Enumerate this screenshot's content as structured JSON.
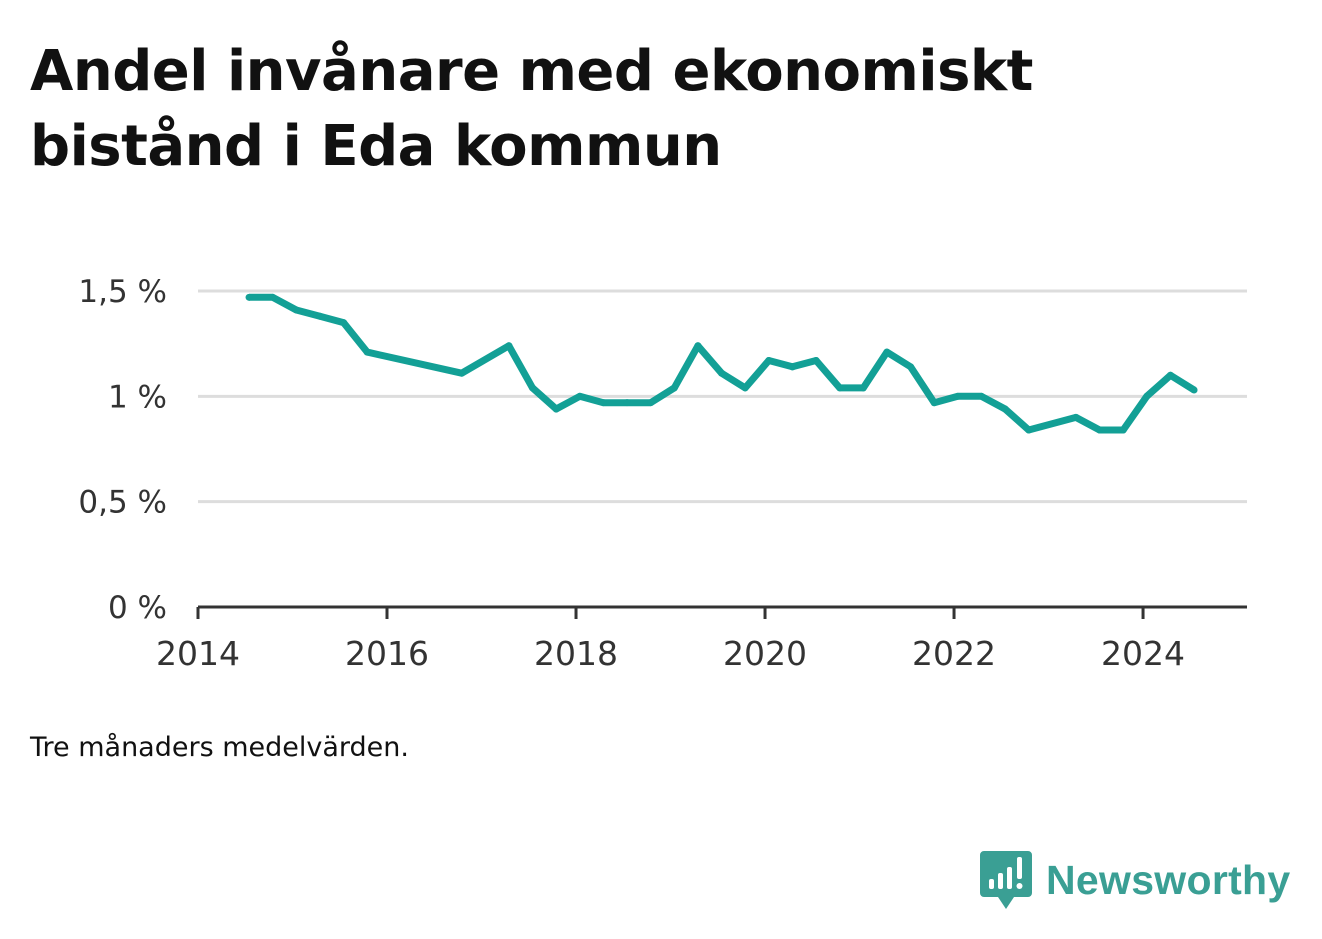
{
  "title": "Andel invånare med ekonomiskt bistånd i Eda kommun",
  "note": "Tre månaders medelvärden.",
  "brand": {
    "name": "Newsworthy",
    "icon": "newsworthy-logo-icon",
    "color": "#3a9f94"
  },
  "chart_data": {
    "type": "line",
    "title": "Andel invånare med ekonomiskt bistånd i Eda kommun",
    "xlabel": "",
    "ylabel": "",
    "xlim": [
      2014,
      2025.1
    ],
    "ylim": [
      0,
      1.5
    ],
    "grid": true,
    "line_color": "#13a096",
    "x_ticks": [
      {
        "value": 2014,
        "label": "2014"
      },
      {
        "value": 2016,
        "label": "2016"
      },
      {
        "value": 2018,
        "label": "2018"
      },
      {
        "value": 2020,
        "label": "2020"
      },
      {
        "value": 2022,
        "label": "2022"
      },
      {
        "value": 2024,
        "label": "2024"
      }
    ],
    "y_ticks": [
      {
        "value": 0,
        "label": "0 %"
      },
      {
        "value": 0.5,
        "label": "0,5 %"
      },
      {
        "value": 1,
        "label": "1 %"
      },
      {
        "value": 1.5,
        "label": "1,5 %"
      }
    ],
    "series": [
      {
        "points": [
          {
            "x": 2014.54,
            "y": 1.47
          },
          {
            "x": 2014.79,
            "y": 1.47
          },
          {
            "x": 2015.04,
            "y": 1.41
          },
          {
            "x": 2015.29,
            "y": 1.38
          },
          {
            "x": 2015.54,
            "y": 1.35
          },
          {
            "x": 2015.79,
            "y": 1.21
          },
          {
            "x": 2016.79,
            "y": 1.11
          },
          {
            "x": 2017.29,
            "y": 1.24
          },
          {
            "x": 2017.54,
            "y": 1.04
          },
          {
            "x": 2017.79,
            "y": 0.94
          },
          {
            "x": 2018.04,
            "y": 1.0
          },
          {
            "x": 2018.29,
            "y": 0.97
          },
          {
            "x": 2018.54,
            "y": 0.97
          },
          {
            "x": 2018.79,
            "y": 0.97
          },
          {
            "x": 2019.04,
            "y": 1.04
          },
          {
            "x": 2019.29,
            "y": 1.24
          },
          {
            "x": 2019.54,
            "y": 1.11
          },
          {
            "x": 2019.79,
            "y": 1.04
          },
          {
            "x": 2020.04,
            "y": 1.17
          },
          {
            "x": 2020.29,
            "y": 1.14
          },
          {
            "x": 2020.54,
            "y": 1.17
          },
          {
            "x": 2020.79,
            "y": 1.04
          },
          {
            "x": 2021.04,
            "y": 1.04
          },
          {
            "x": 2021.29,
            "y": 1.21
          },
          {
            "x": 2021.54,
            "y": 1.14
          },
          {
            "x": 2021.79,
            "y": 0.97
          },
          {
            "x": 2022.04,
            "y": 1.0
          },
          {
            "x": 2022.29,
            "y": 1.0
          },
          {
            "x": 2022.54,
            "y": 0.94
          },
          {
            "x": 2022.79,
            "y": 0.84
          },
          {
            "x": 2023.29,
            "y": 0.9
          },
          {
            "x": 2023.54,
            "y": 0.84
          },
          {
            "x": 2023.79,
            "y": 0.84
          },
          {
            "x": 2024.04,
            "y": 1.0
          },
          {
            "x": 2024.29,
            "y": 1.1
          },
          {
            "x": 2024.54,
            "y": 1.03
          }
        ]
      }
    ]
  }
}
